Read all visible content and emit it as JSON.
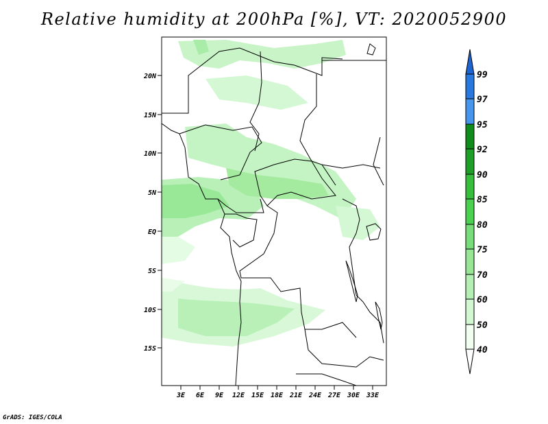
{
  "title": "Relative humidity at 200hPa [%], VT: 2020052900",
  "credit": "GrADS: IGES/COLA",
  "map": {
    "lat_ticks": [
      "20N",
      "15N",
      "10N",
      "5N",
      "EQ",
      "5S",
      "10S",
      "15S"
    ],
    "lon_ticks": [
      "3E",
      "6E",
      "9E",
      "12E",
      "15E",
      "18E",
      "21E",
      "24E",
      "27E",
      "30E",
      "33E"
    ],
    "lat_range": [
      -20,
      25
    ],
    "lon_range": [
      0,
      35
    ]
  },
  "colorbar": {
    "levels": [
      "99",
      "97",
      "95",
      "92",
      "90",
      "85",
      "80",
      "75",
      "70",
      "60",
      "50",
      "40"
    ],
    "colors": {
      "above_99": "#1e64d0",
      "97_99": "#2878e0",
      "95_97": "#4696ec",
      "92_95": "#0f8c19",
      "90_92": "#1ea028",
      "85_90": "#37be3c",
      "80_85": "#4bd04f",
      "75_80": "#78dc78",
      "70_75": "#96e696",
      "60_70": "#b4f0b4",
      "50_60": "#d2f8d2",
      "40_50": "#f0fff0",
      "below_40": "#ffffff"
    }
  }
}
